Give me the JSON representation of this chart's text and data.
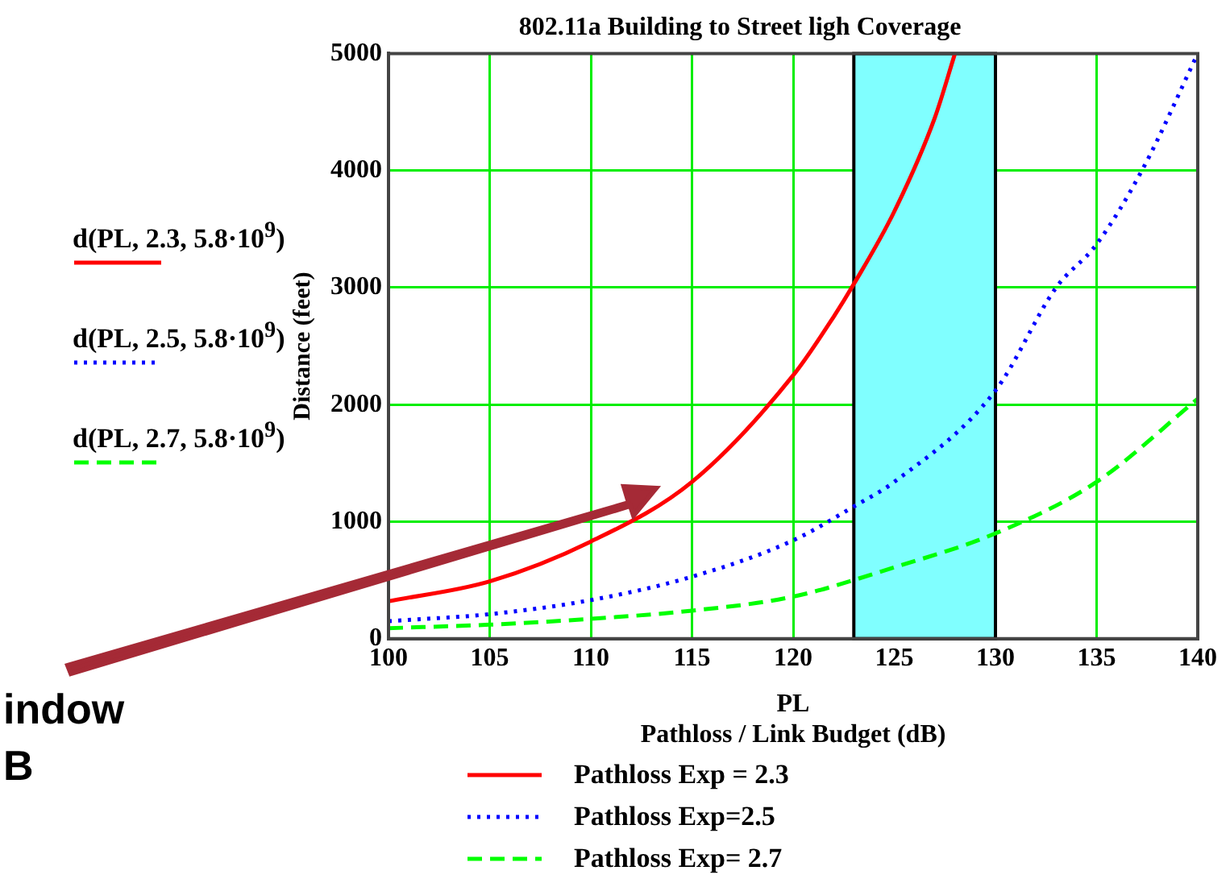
{
  "chart_data": {
    "type": "line",
    "title": "802.11a Building to Street ligh Coverage",
    "xlabel": "PL",
    "ylabel": "Distance (feet)",
    "annotations": [
      "Pathloss / Link Budget (dB)",
      "d(PL, 2.3, 5.8·10$^{9}$)",
      "d(PL, 2.5, 5.8·10$^{9}$)",
      "d(PL, 2.7, 5.8·10$^{9}$)",
      "indow",
      "B"
    ],
    "xlim": [
      100,
      140
    ],
    "xticks": [
      100,
      105,
      110,
      115,
      120,
      125,
      130,
      135,
      140
    ],
    "ylim": [
      0,
      5000
    ],
    "yticks": [
      0,
      1000,
      2000,
      3000,
      4000,
      5000
    ],
    "grid": true,
    "legend": "bottom",
    "marker": "none",
    "bands": [
      {
        "axis": "x",
        "from": 123,
        "to": 130,
        "color": "#80ffff"
      }
    ],
    "series": [
      {
        "name": "Pathloss Exp = 2.3",
        "color": "#ff0000",
        "line_style": "solid",
        "x": [
          100,
          105,
          110,
          115,
          120,
          122,
          123,
          125,
          127,
          128
        ],
        "values": [
          320,
          490,
          830,
          1340,
          2250,
          2750,
          3030,
          3650,
          4450,
          5000
        ]
      },
      {
        "name": "Pathloss Exp=2.5",
        "color": "#0000ff",
        "line_style": "dotted",
        "x": [
          100,
          105,
          110,
          115,
          120,
          123,
          125,
          130,
          133,
          135,
          137.3,
          140
        ],
        "values": [
          150,
          210,
          330,
          530,
          840,
          1130,
          1340,
          2120,
          3000,
          3370,
          4020,
          5000
        ]
      },
      {
        "name": "Pathloss Exp= 2.7",
        "color": "#00ff00",
        "line_style": "dashed",
        "x": [
          100,
          105,
          110,
          115,
          120,
          125,
          130,
          135,
          140
        ],
        "values": [
          90,
          120,
          170,
          240,
          360,
          610,
          900,
          1340,
          2050
        ]
      }
    ]
  }
}
